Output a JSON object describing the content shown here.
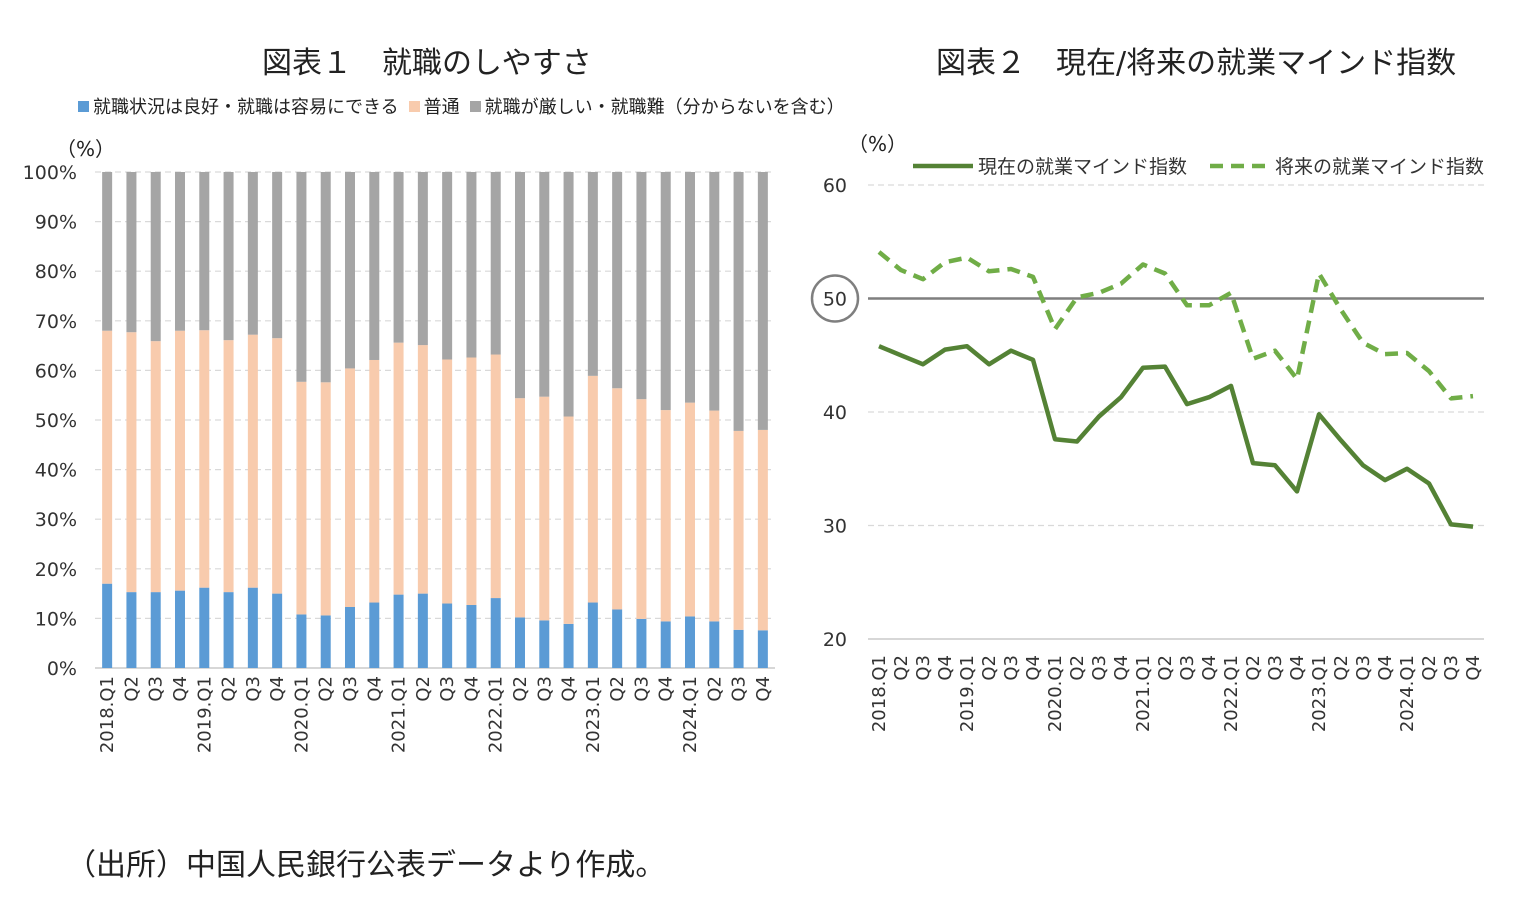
{
  "source_note": "（出所）中国人民銀行公表データより作成。",
  "chart_data": [
    {
      "type": "bar",
      "stacked": true,
      "title": "図表１　就職のしやすさ",
      "ylabel": "（%）",
      "ylim": [
        0,
        100
      ],
      "y_ticks": [
        "0%",
        "10%",
        "20%",
        "30%",
        "40%",
        "50%",
        "60%",
        "70%",
        "80%",
        "90%",
        "100%"
      ],
      "grid": true,
      "legend_position": "top",
      "categories": [
        "2018.Q1",
        "Q2",
        "Q3",
        "Q4",
        "2019.Q1",
        "Q2",
        "Q3",
        "Q4",
        "2020.Q1",
        "Q2",
        "Q3",
        "Q4",
        "2021.Q1",
        "Q2",
        "Q3",
        "Q4",
        "2022.Q1",
        "Q2",
        "Q3",
        "Q4",
        "2023.Q1",
        "Q2",
        "Q3",
        "Q4",
        "2024.Q1",
        "Q2",
        "Q3",
        "Q4"
      ],
      "series": [
        {
          "name": "就職状況は良好・就職は容易にできる",
          "color": "#5b9bd5",
          "values": [
            17.0,
            15.3,
            15.3,
            15.6,
            16.2,
            15.3,
            16.2,
            15.0,
            10.8,
            10.6,
            12.3,
            13.2,
            14.8,
            15.0,
            13.0,
            12.7,
            14.1,
            10.2,
            9.6,
            8.9,
            13.2,
            11.8,
            9.9,
            9.4,
            10.4,
            9.4,
            7.7,
            7.6
          ]
        },
        {
          "name": "普通",
          "color": "#f8cbad",
          "values": [
            51.0,
            52.4,
            50.6,
            52.4,
            51.9,
            50.8,
            51.0,
            51.5,
            46.9,
            47.0,
            48.1,
            48.9,
            50.8,
            50.1,
            49.2,
            49.9,
            49.1,
            44.2,
            45.1,
            41.8,
            45.7,
            44.6,
            44.3,
            42.6,
            43.1,
            42.5,
            40.1,
            40.4
          ]
        },
        {
          "name": "就職が厳しい・就職難（分からないを含む）",
          "color": "#a5a5a5",
          "values": [
            32.0,
            32.3,
            34.1,
            32.0,
            31.9,
            33.9,
            32.8,
            33.5,
            42.3,
            42.4,
            39.6,
            37.9,
            34.4,
            34.9,
            37.8,
            37.4,
            36.8,
            45.6,
            45.3,
            49.3,
            41.1,
            43.6,
            45.8,
            48.0,
            46.5,
            48.1,
            52.2,
            52.0
          ]
        }
      ]
    },
    {
      "type": "line",
      "title": "図表２　現在/将来の就業マインド指数",
      "ylabel": "（%）",
      "ylim": [
        20,
        60
      ],
      "y_ticks": [
        "20",
        "30",
        "40",
        "50",
        "60"
      ],
      "grid": true,
      "reference_line": 50,
      "legend_position": "top",
      "categories": [
        "2018.Q1",
        "Q2",
        "Q3",
        "Q4",
        "2019.Q1",
        "Q2",
        "Q3",
        "Q4",
        "2020.Q1",
        "Q2",
        "Q3",
        "Q4",
        "2021.Q1",
        "Q2",
        "Q3",
        "Q4",
        "2022.Q1",
        "Q2",
        "Q3",
        "Q4",
        "2023.Q1",
        "Q2",
        "Q3",
        "Q4",
        "2024.Q1",
        "Q2",
        "Q3",
        "Q4"
      ],
      "series": [
        {
          "name": "現在の就業マインド指数",
          "color": "#548235",
          "style": "solid",
          "values": [
            45.8,
            45.0,
            44.2,
            45.5,
            45.8,
            44.2,
            45.4,
            44.6,
            37.6,
            37.4,
            39.6,
            41.3,
            43.9,
            44.0,
            40.7,
            41.3,
            42.3,
            35.5,
            35.3,
            33.0,
            39.8,
            37.5,
            35.3,
            34.0,
            35.0,
            33.7,
            30.1,
            29.9
          ]
        },
        {
          "name": "将来の就業マインド指数",
          "color": "#70ad47",
          "style": "dashed",
          "values": [
            54.1,
            52.5,
            51.7,
            53.2,
            53.6,
            52.4,
            52.6,
            51.9,
            47.3,
            50.1,
            50.5,
            51.3,
            53.0,
            52.2,
            49.4,
            49.4,
            50.5,
            44.7,
            45.4,
            42.9,
            52.2,
            49.0,
            46.1,
            45.1,
            45.2,
            43.6,
            41.2,
            41.4
          ]
        }
      ]
    }
  ]
}
